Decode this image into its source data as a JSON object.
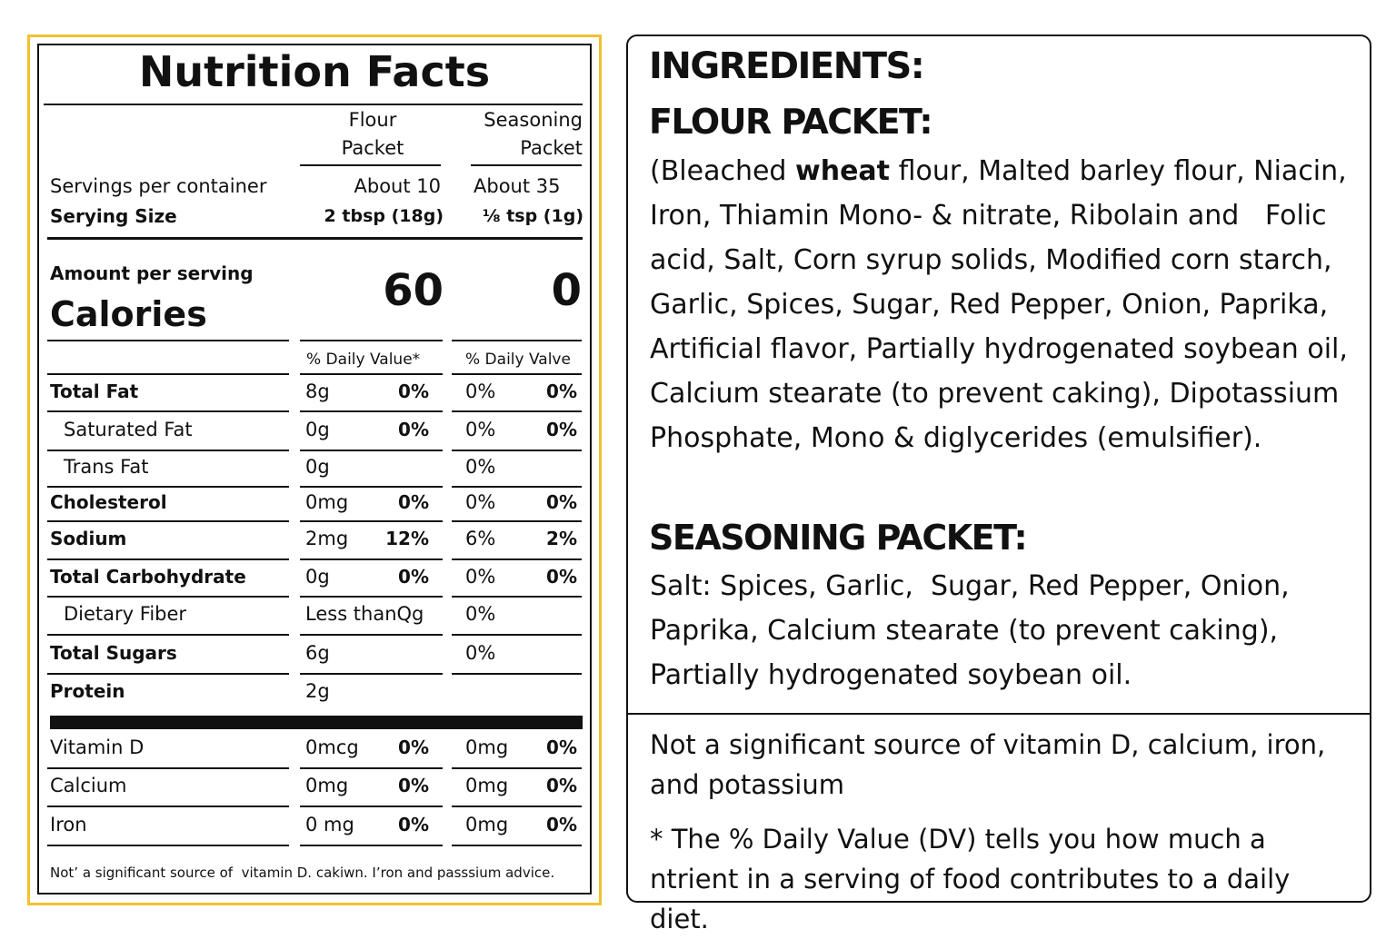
{
  "nutrition": {
    "title": "Nutrition Facts",
    "columns": [
      "Flour Packet",
      "Seasoning Packet"
    ],
    "servings_label": "Servings per container",
    "servings": [
      "About 10",
      "About 35"
    ],
    "serving_size_label": "Serying Size",
    "serving_size": [
      "2 tbsp (18g)",
      "⅛ tsp (1g)"
    ],
    "amount_label": "Amount per serving",
    "calories_label": "Calories",
    "calories": [
      60,
      0
    ],
    "dv_headers": [
      "% Daily Value*",
      "% Daily Valve"
    ],
    "rows": [
      {
        "name": "Total Fat",
        "flour_amount": "8g",
        "flour_dv": "0%",
        "seasoning_amount": "0%",
        "seasoning_dv": "0%"
      },
      {
        "name": "Saturated Fat",
        "flour_amount": "0g",
        "flour_dv": "0%",
        "seasoning_amount": "0%",
        "seasoning_dv": "0%"
      },
      {
        "name": "Trans Fat",
        "flour_amount": "0g",
        "seasoning_amount": "0%"
      },
      {
        "name": "Cholesterol",
        "flour_amount": "0mg",
        "flour_dv": "0%",
        "seasoning_amount": "0%",
        "seasoning_dv": "0%"
      },
      {
        "name": "Sodium",
        "flour_amount": "2mg",
        "flour_dv": "12%",
        "seasoning_amount": "6%",
        "seasoning_dv": "2%"
      },
      {
        "name": "Total Carbohydrate",
        "flour_amount": "0g",
        "flour_dv": "0%",
        "seasoning_amount": "0%",
        "seasoning_dv": "0%"
      },
      {
        "name": "Dietary Fiber",
        "flour_amount": "Less thanQg",
        "seasoning_amount": "0%"
      },
      {
        "name": "Total Sugars",
        "flour_amount": "6g",
        "seasoning_amount": "0%"
      },
      {
        "name": "Protein",
        "flour_amount": "2g"
      },
      {
        "name": "Vitamin D",
        "flour_amount": "0mcg",
        "flour_dv": "0%",
        "seasoning_amount": "0mg",
        "seasoning_dv": "0%"
      },
      {
        "name": "Calcium",
        "flour_amount": "0mg",
        "flour_dv": "0%",
        "seasoning_amount": "0mg",
        "seasoning_dv": "0%"
      },
      {
        "name": "Iron",
        "flour_amount": "0 mg",
        "flour_dv": "0%",
        "seasoning_amount": "0mg",
        "seasoning_dv": "0%"
      }
    ],
    "footnote": "Not’ a significant source of  vitamin D. cakiwn. I’ron and passsium advice."
  },
  "ingredients": {
    "title": "INGREDIENTS:",
    "flour_heading": "FLOUR PACKET:",
    "flour_text": [
      "(Bleached ",
      "wheat",
      " flour, Malted barley flour, Niacin, Iron, Thiamin Mono- & nitrate, Ribolain and   Folic acid, Salt, Corn syrup solids, Modified corn starch, Garlic, Spices, Sugar, Red Pepper, Onion, Paprika, Artificial flavor, Partially hydrogenated soybean oil, Calcium stearate (to prevent caking), Dipotassium Phosphate, Mono & diglycerides (emulsifier)."
    ],
    "seasoning_heading": "SEASONING PACKET:",
    "seasoning_text": "Salt: Spices, Garlic,  Sugar, Red Pepper, Onion, Paprika, Calcium stearate (to prevent caking), Partially hydrogenated soybean oil.",
    "notes": [
      "Not a significant source of vitamin D, calcium, iron, and potassium",
      "* The % Daily Value (DV) tells you how much a ntrient in a serving of food contributes to a daily diet."
    ]
  }
}
